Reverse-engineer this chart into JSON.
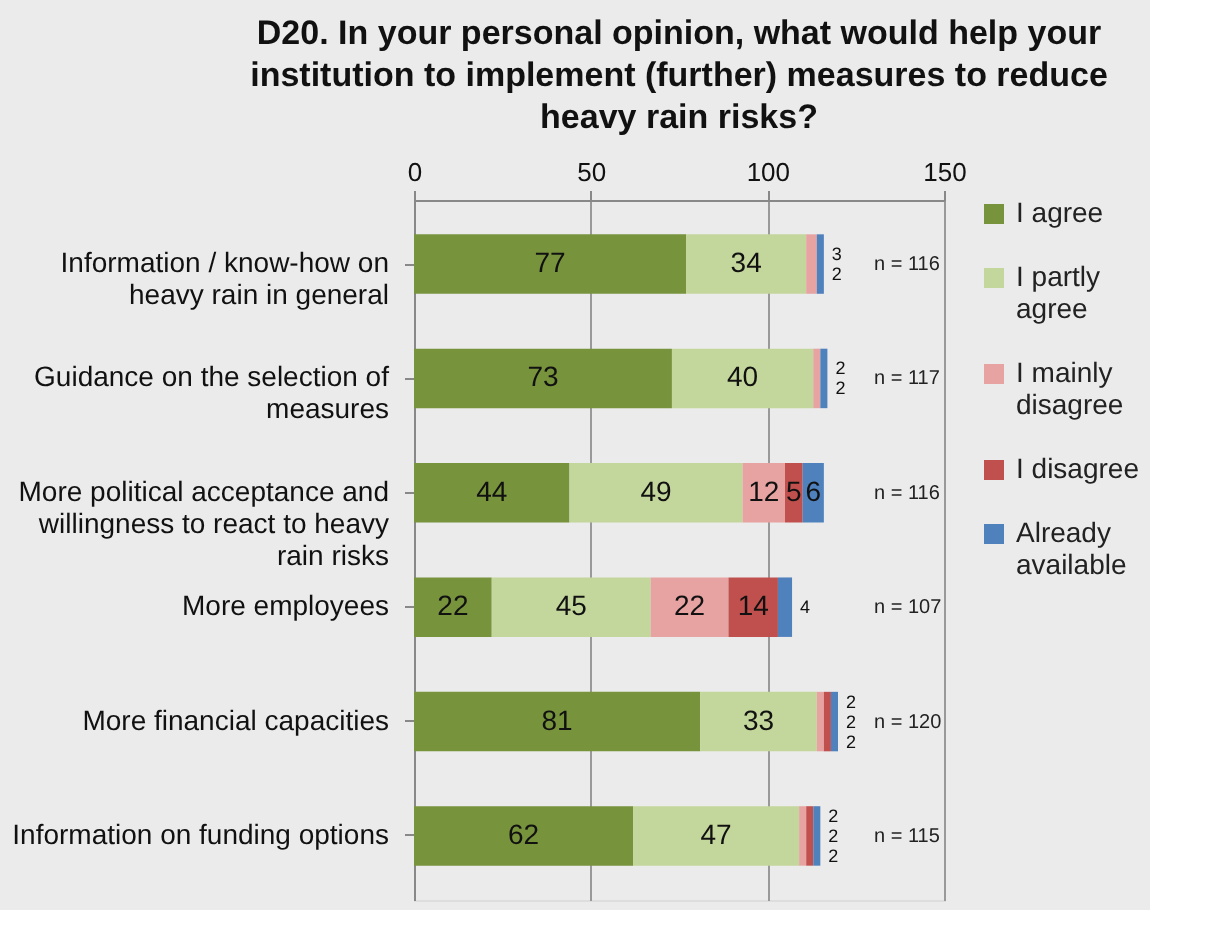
{
  "chart_data": {
    "type": "bar",
    "orientation": "horizontal",
    "stacked": true,
    "title": "D20. In your personal opinion, what would help your institution to implement (further) measures to reduce heavy rain risks?",
    "categories": [
      "Information / know-how on heavy rain in general",
      "Guidance on the selection of measures",
      "More political acceptance and willingness to react to heavy rain risks",
      "More employees",
      "More financial capacities",
      "Information on funding options"
    ],
    "series": [
      {
        "name": "I agree",
        "color": "#77933c",
        "values": [
          77,
          73,
          44,
          22,
          81,
          62
        ]
      },
      {
        "name": "I partly agree",
        "color": "#c3d69b",
        "values": [
          34,
          40,
          49,
          45,
          33,
          47
        ]
      },
      {
        "name": "I mainly disagree",
        "color": "#e6a3a2",
        "values": [
          3,
          2,
          12,
          22,
          2,
          2
        ]
      },
      {
        "name": "I disagree",
        "color": "#c0504d",
        "values": [
          null,
          null,
          5,
          14,
          2,
          2
        ]
      },
      {
        "name": "Already available",
        "color": "#4f81bd",
        "values": [
          2,
          2,
          6,
          4,
          2,
          2
        ]
      }
    ],
    "xlim": [
      0,
      150
    ],
    "xticks": [
      0,
      50,
      100,
      150
    ],
    "grid": "x",
    "legend": "right",
    "data_labels": true,
    "annotations": [
      "n = 116",
      "n = 117",
      "n = 116",
      "n = 107",
      "n = 120",
      "n = 115"
    ]
  }
}
